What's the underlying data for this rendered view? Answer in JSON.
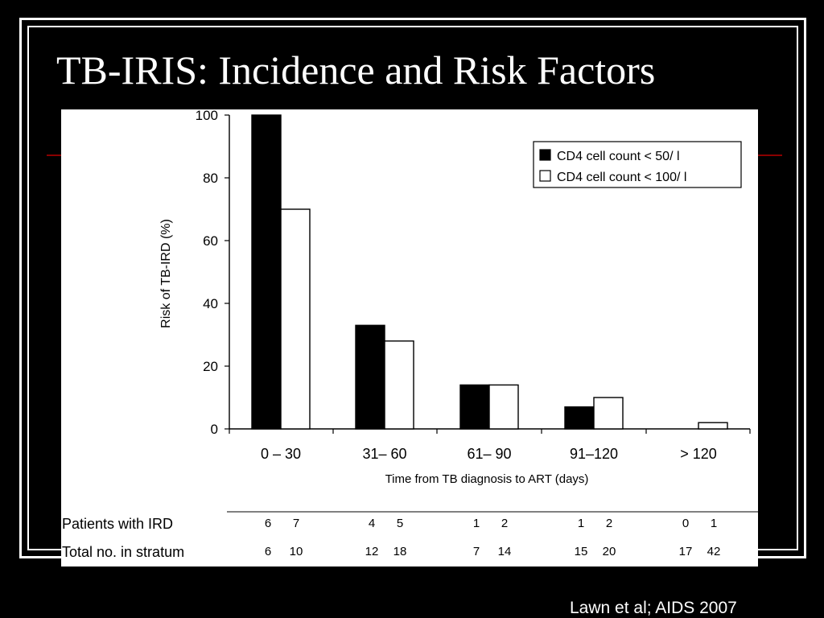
{
  "slide": {
    "title": "TB-IRIS: Incidence and Risk Factors",
    "citation": "Lawn et al; AIDS 2007"
  },
  "colors": {
    "background": "#000000",
    "series_1": "#000000",
    "series_2": "#ffffff",
    "rule": "#8a0000"
  },
  "chart_data": {
    "type": "bar",
    "categories": [
      "0 – 30",
      "31– 60",
      "61– 90",
      "91–120",
      "> 120"
    ],
    "series": [
      {
        "name": "CD4 cell count < 50/  l",
        "values": [
          100,
          33,
          14,
          7,
          0
        ]
      },
      {
        "name": "CD4 cell count < 100/  l",
        "values": [
          70,
          28,
          14,
          10,
          2
        ]
      }
    ],
    "ylabel": "Risk of TB-IRD (%)",
    "xlabel": "Time from TB diagnosis to ART (days)",
    "ylim": [
      0,
      100
    ],
    "yticks": [
      0,
      20,
      40,
      60,
      80,
      100
    ],
    "grid": false,
    "legend": "top-right"
  },
  "table": {
    "rows": [
      {
        "label": "Patients with IRD",
        "values": [
          [
            "6",
            "7"
          ],
          [
            "4",
            "5"
          ],
          [
            "1",
            "2"
          ],
          [
            "1",
            "2"
          ],
          [
            "0",
            "1"
          ]
        ]
      },
      {
        "label": "Total no. in stratum",
        "values": [
          [
            "6",
            "10"
          ],
          [
            "12",
            "18"
          ],
          [
            "7",
            "14"
          ],
          [
            "15",
            "20"
          ],
          [
            "17",
            "42"
          ]
        ]
      }
    ]
  }
}
